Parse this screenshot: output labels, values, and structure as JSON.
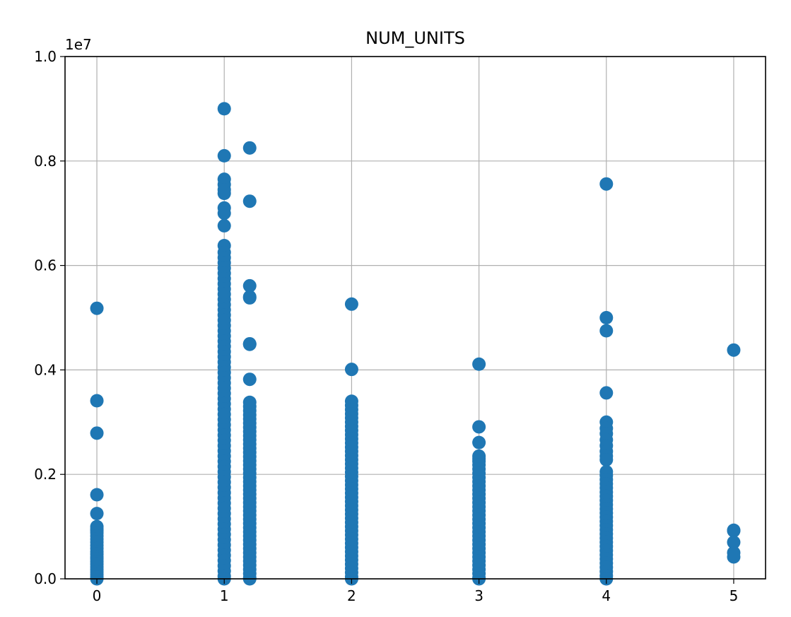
{
  "chart_data": {
    "type": "scatter",
    "title": "NUM_UNITS",
    "xlabel": "",
    "ylabel": "",
    "xlim": [
      -0.25,
      5.25
    ],
    "ylim": [
      0,
      10000000
    ],
    "y_offset_text": "1e7",
    "x_ticks": [
      0,
      1,
      2,
      3,
      4,
      5
    ],
    "x_tick_labels": [
      "0",
      "1",
      "2",
      "3",
      "4",
      "5"
    ],
    "y_ticks": [
      0,
      2000000,
      4000000,
      6000000,
      8000000,
      10000000
    ],
    "y_tick_labels": [
      "0.0",
      "0.2",
      "0.4",
      "0.6",
      "0.8",
      "1.0"
    ],
    "grid": true,
    "marker_color": "#1f77b4",
    "series": [
      {
        "x": 0,
        "values": [
          5180000,
          3410000,
          2790000,
          1610000,
          1250000,
          1000000,
          950000,
          920000,
          880000,
          820000,
          760000,
          700000,
          640000,
          580000,
          520000,
          470000,
          420000,
          380000,
          330000,
          280000,
          230000,
          180000,
          130000,
          80000,
          30000,
          0
        ]
      },
      {
        "x": 1,
        "values": [
          9000000,
          8100000,
          7650000,
          7550000,
          7450000,
          7380000,
          7100000,
          7000000,
          6760000,
          6380000,
          6250000,
          6150000,
          6050000,
          5950000,
          5850000,
          5750000,
          5650000,
          5550000,
          5450000,
          5350000,
          5250000,
          5150000,
          5050000,
          4950000,
          4850000,
          4750000,
          4650000,
          4550000,
          4450000,
          4350000,
          4250000,
          4150000,
          4050000,
          3950000,
          3850000,
          3750000,
          3650000,
          3550000,
          3450000,
          3350000,
          3250000,
          3150000,
          3050000,
          2950000,
          2850000,
          2750000,
          2650000,
          2550000,
          2450000,
          2350000,
          2250000,
          2150000,
          2050000,
          1950000,
          1850000,
          1750000,
          1650000,
          1550000,
          1450000,
          1350000,
          1250000,
          1150000,
          1050000,
          950000,
          850000,
          750000,
          650000,
          550000,
          450000,
          350000,
          250000,
          150000,
          50000,
          0
        ]
      },
      {
        "x": 1.2,
        "values": [
          8250000,
          7230000,
          5610000,
          5400000,
          5380000,
          4500000,
          4490000,
          3820000,
          3380000,
          3300000,
          3220000,
          3140000,
          3060000,
          2980000,
          2900000,
          2820000,
          2740000,
          2660000,
          2580000,
          2500000,
          2420000,
          2340000,
          2260000,
          2180000,
          2100000,
          2020000,
          1940000,
          1860000,
          1780000,
          1700000,
          1620000,
          1540000,
          1460000,
          1380000,
          1300000,
          1220000,
          1140000,
          1060000,
          980000,
          900000,
          820000,
          740000,
          660000,
          580000,
          500000,
          420000,
          340000,
          260000,
          180000,
          100000,
          20000,
          0
        ]
      },
      {
        "x": 2,
        "values": [
          5260000,
          4010000,
          3400000,
          3320000,
          3240000,
          3160000,
          3080000,
          3000000,
          2920000,
          2840000,
          2760000,
          2680000,
          2600000,
          2520000,
          2440000,
          2360000,
          2280000,
          2200000,
          2120000,
          2040000,
          1960000,
          1880000,
          1800000,
          1720000,
          1640000,
          1560000,
          1480000,
          1400000,
          1320000,
          1240000,
          1160000,
          1080000,
          1000000,
          920000,
          840000,
          760000,
          680000,
          600000,
          520000,
          440000,
          360000,
          280000,
          200000,
          120000,
          40000,
          0
        ]
      },
      {
        "x": 3,
        "values": [
          4110000,
          2910000,
          2610000,
          2350000,
          2300000,
          2250000,
          2180000,
          2100000,
          2020000,
          1940000,
          1860000,
          1780000,
          1700000,
          1620000,
          1540000,
          1460000,
          1380000,
          1300000,
          1220000,
          1140000,
          1060000,
          980000,
          900000,
          820000,
          740000,
          660000,
          580000,
          500000,
          420000,
          340000,
          260000,
          180000,
          100000,
          20000,
          0
        ]
      },
      {
        "x": 4,
        "values": [
          7560000,
          5000000,
          4750000,
          3560000,
          3000000,
          2880000,
          2780000,
          2660000,
          2550000,
          2440000,
          2350000,
          2280000,
          2050000,
          1980000,
          1900000,
          1820000,
          1740000,
          1660000,
          1580000,
          1500000,
          1420000,
          1340000,
          1260000,
          1180000,
          1100000,
          1020000,
          940000,
          860000,
          780000,
          700000,
          620000,
          540000,
          460000,
          380000,
          300000,
          220000,
          140000,
          60000,
          0
        ]
      },
      {
        "x": 5,
        "values": [
          4380000,
          930000,
          920000,
          700000,
          500000,
          420000
        ]
      }
    ]
  }
}
